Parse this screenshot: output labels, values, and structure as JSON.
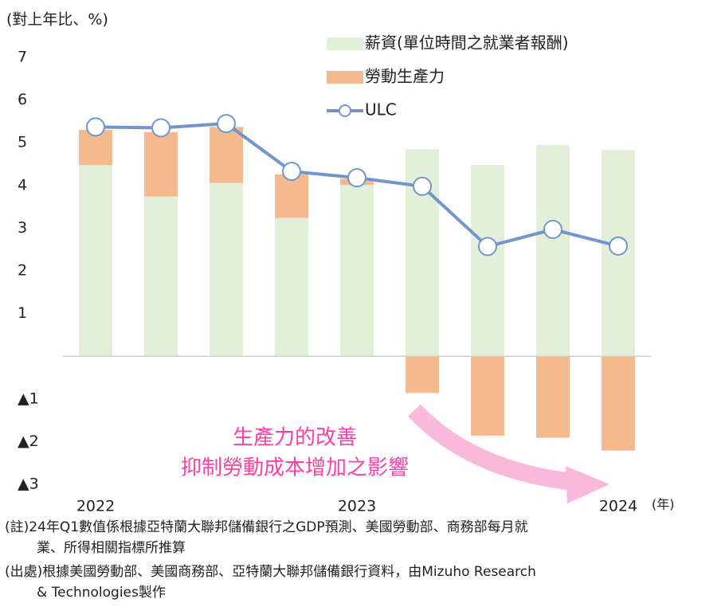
{
  "chart_data": {
    "type": "bar",
    "ylabel": "(對上年比、%)",
    "xlabel": "(年)",
    "categories": [
      "2022",
      null,
      null,
      null,
      "2023",
      null,
      null,
      null,
      "2024"
    ],
    "series": [
      {
        "name": "薪資(單位時間之就業者報酬)",
        "color": "#e2efd9",
        "values": [
          4.48,
          3.74,
          4.06,
          3.24,
          4.01,
          4.85,
          4.48,
          4.95,
          4.83
        ]
      },
      {
        "name": "勞動生產力",
        "color": "#f4b98f",
        "values": [
          0.82,
          1.51,
          1.31,
          1.02,
          0.15,
          -0.86,
          -1.86,
          -1.91,
          -2.21
        ]
      },
      {
        "name": "ULC",
        "color": "#7295cc",
        "type": "line",
        "values": [
          5.37,
          5.35,
          5.45,
          4.33,
          4.18,
          3.98,
          2.57,
          2.97,
          2.58
        ]
      }
    ],
    "ylim": [
      -3,
      7
    ],
    "yticks": [
      {
        "value": -3,
        "label": "▲3"
      },
      {
        "value": -2,
        "label": "▲2"
      },
      {
        "value": -1,
        "label": "▲1"
      },
      1,
      2,
      3,
      4,
      5,
      6,
      7
    ],
    "annotation": [
      "生產力的改善",
      "抑制勞動成本增加之影響"
    ],
    "notes": [
      "(註)24年Q1數值係根據亞特蘭大聯邦儲備銀行之GDP預測、美國勞動部、商務部每月就",
      "業、所得相關指標所推算",
      "(出處)根據美國勞動部、美國商務部、亞特蘭大聯邦儲備銀行資料，由Mizuho Research",
      "& Technologies製作"
    ]
  }
}
